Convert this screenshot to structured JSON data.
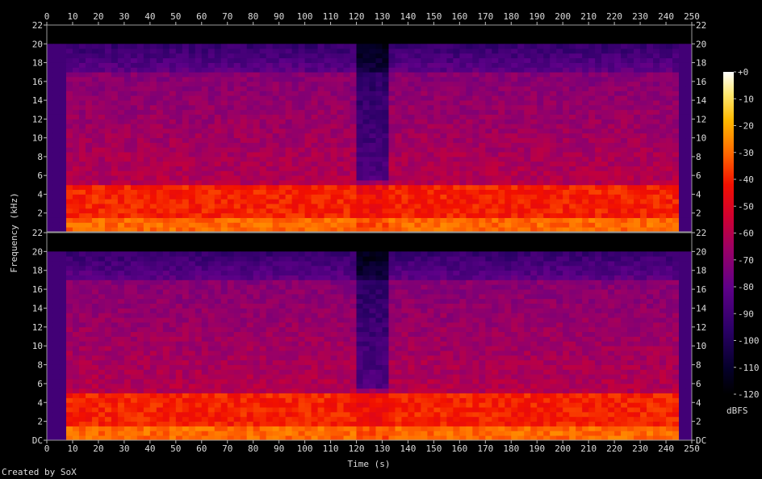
{
  "chart_data": {
    "type": "heatmap",
    "subtype": "spectrogram",
    "channels": 2,
    "xlabel": "Time (s)",
    "ylabel": "Frequency (kHz)",
    "xlim": [
      0,
      250
    ],
    "x_ticks": [
      0,
      10,
      20,
      30,
      40,
      50,
      60,
      70,
      80,
      90,
      100,
      110,
      120,
      130,
      140,
      150,
      160,
      170,
      180,
      190,
      200,
      210,
      220,
      230,
      240,
      250
    ],
    "ylim_khz": [
      0,
      22
    ],
    "y_tick_values_khz": [
      0,
      2,
      4,
      6,
      8,
      10,
      12,
      14,
      16,
      18,
      20,
      22
    ],
    "y_tick_labels": [
      "DC",
      "2",
      "4",
      "6",
      "8",
      "10",
      "12",
      "14",
      "16",
      "18",
      "20",
      "22"
    ],
    "colorbar": {
      "label": "dBFS",
      "range": [
        -120,
        0
      ],
      "ticks": [
        0,
        -10,
        -20,
        -30,
        -40,
        -50,
        -60,
        -70,
        -80,
        -90,
        -100,
        -110,
        -120
      ],
      "tick_labels": [
        "+0",
        "-10",
        "-20",
        "-30",
        "-40",
        "-50",
        "-60",
        "-70",
        "-80",
        "-90",
        "-100",
        "-110",
        "-120"
      ]
    },
    "approx_content": {
      "lowpass_cutoff_khz": 20,
      "quiet_intro_s": [
        0,
        8
      ],
      "quiet_outro_s": [
        246,
        250
      ],
      "breakdown_section_s": [
        120,
        133
      ],
      "loud_low_band_khz": [
        0,
        5
      ],
      "mid_band_khz": [
        5,
        17
      ],
      "level_low_band_dbfs": -40,
      "level_mid_band_dbfs": -60,
      "level_high_band_dbfs": -80
    }
  },
  "credit": "Created by SoX"
}
